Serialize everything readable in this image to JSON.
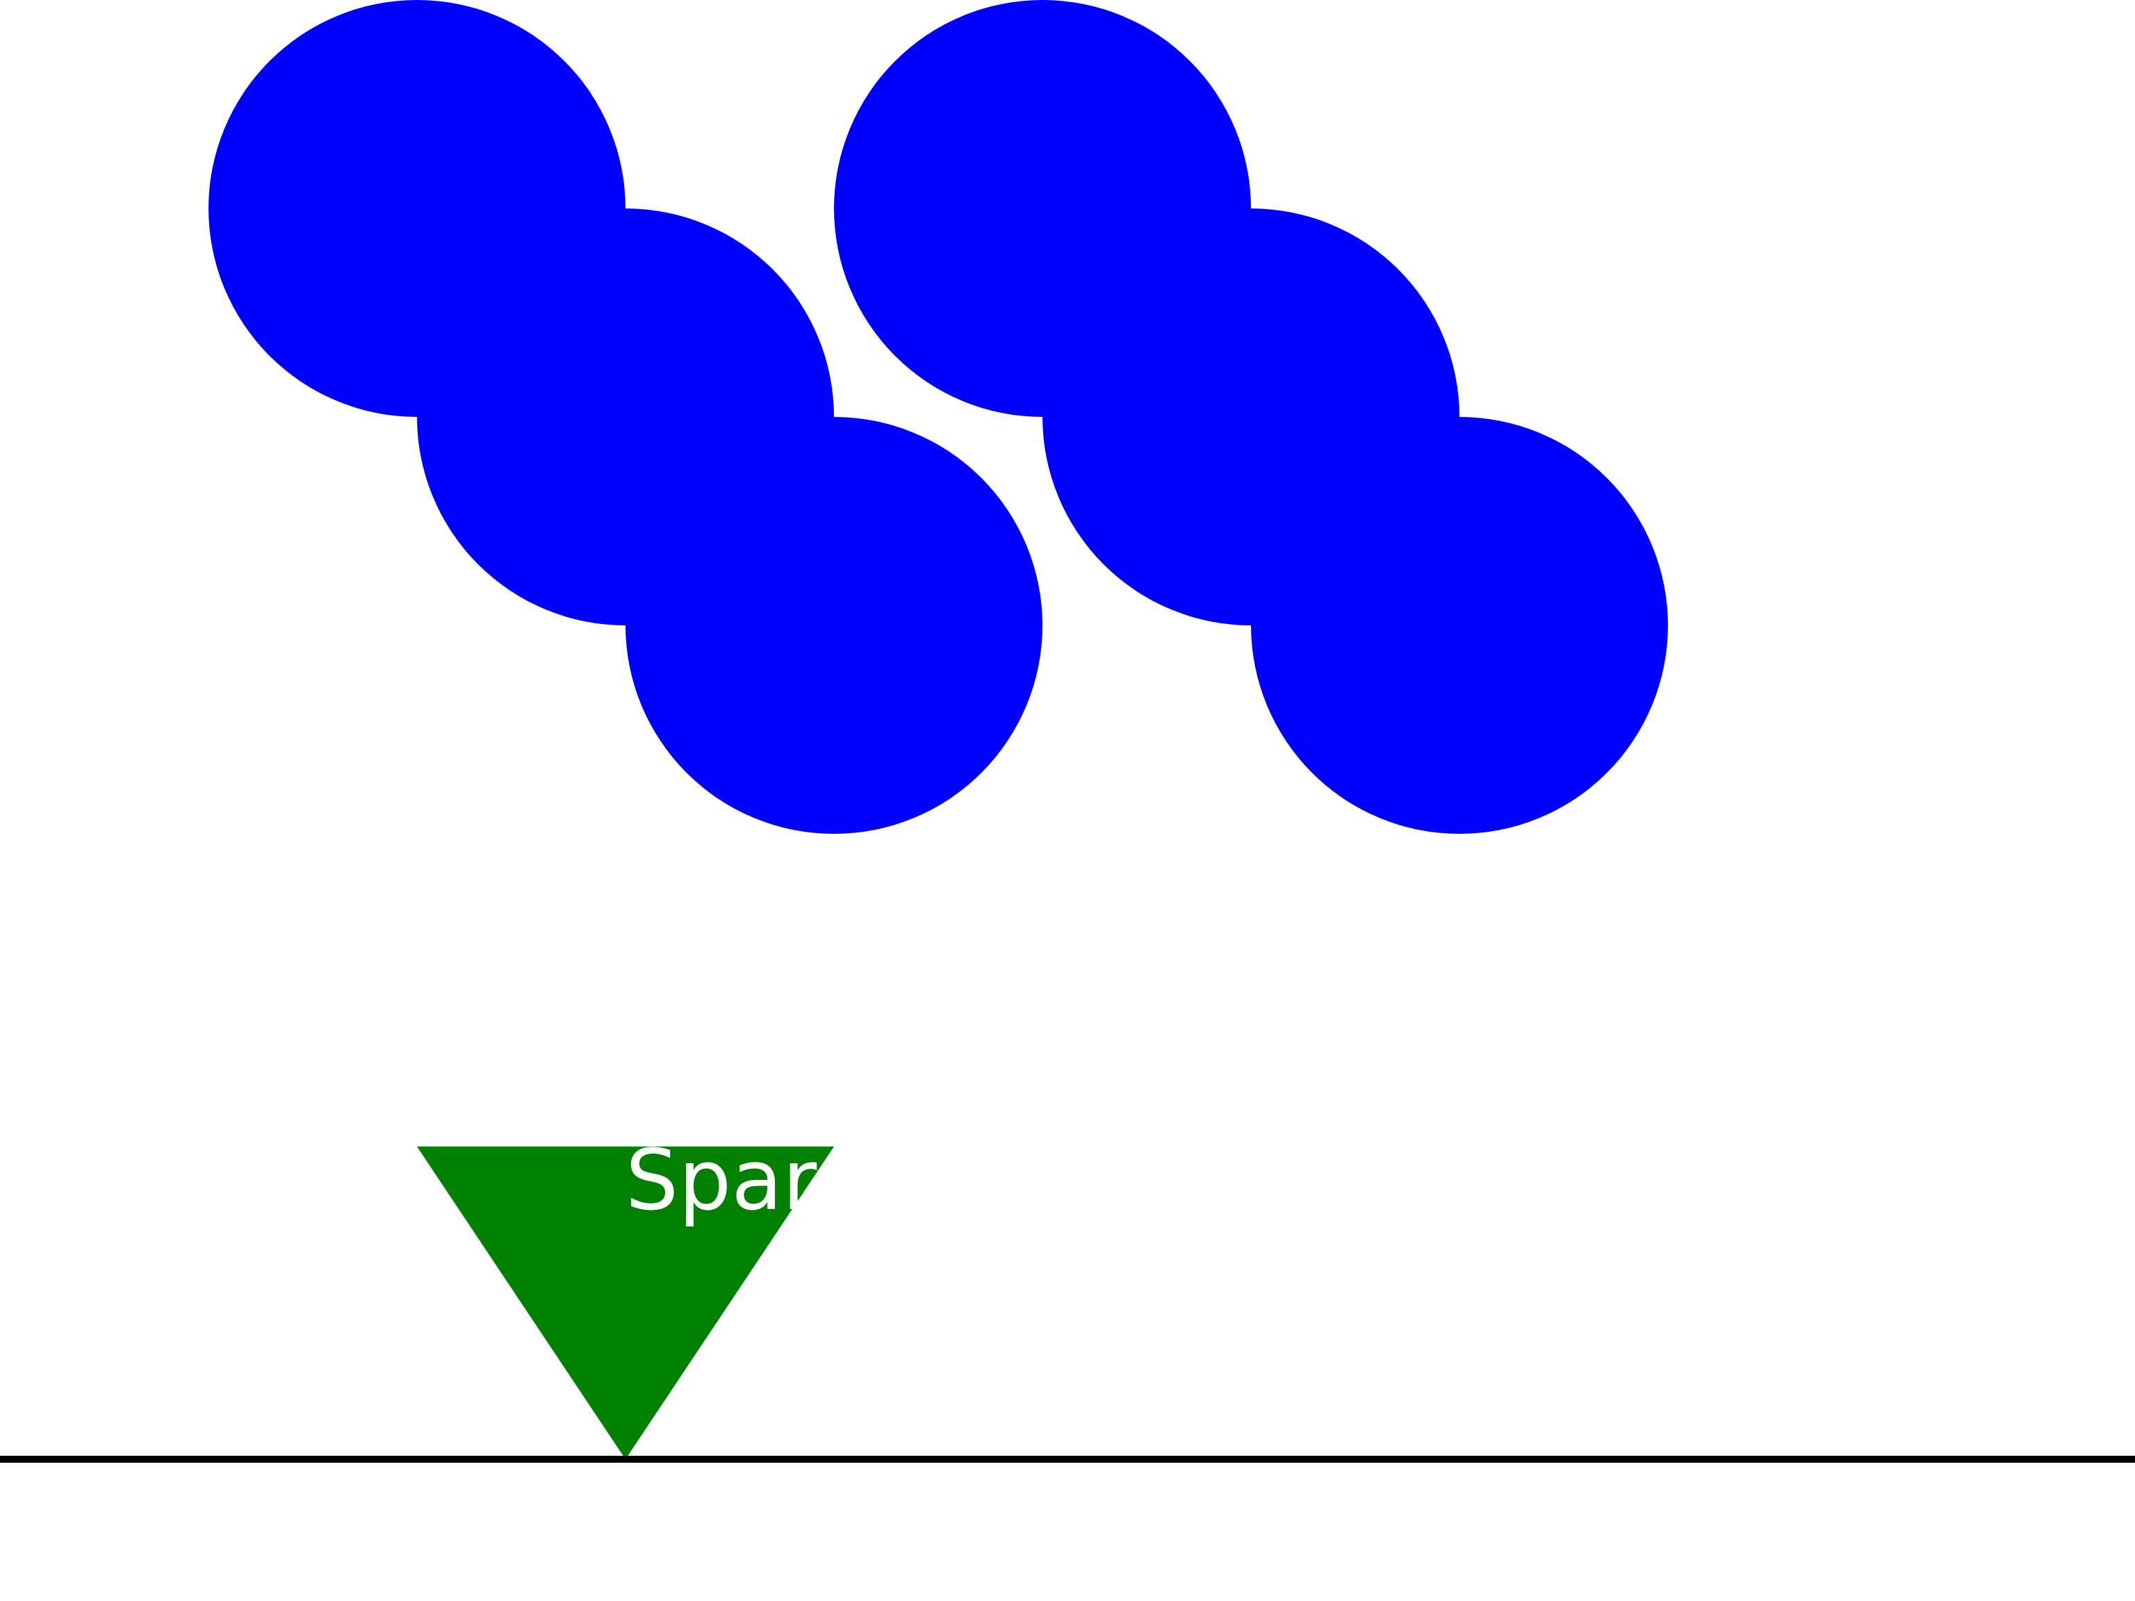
{
  "colors": {
    "background": "#ffffff",
    "circle": "#0000ff",
    "triangle": "#008000",
    "ground": "#000000",
    "label": "#ffffff"
  },
  "circles": [
    {
      "name": "circle-1"
    },
    {
      "name": "circle-2"
    },
    {
      "name": "circle-3"
    },
    {
      "name": "circle-4"
    },
    {
      "name": "circle-5"
    },
    {
      "name": "circle-6"
    }
  ],
  "triangle": {
    "label": "Spar"
  }
}
